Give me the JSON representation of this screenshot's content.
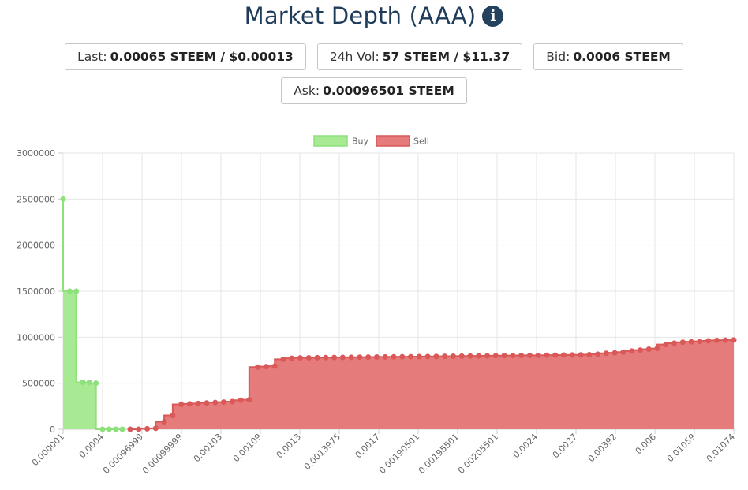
{
  "header": {
    "title": "Market Depth (AAA)",
    "info_icon": "info-circle-icon"
  },
  "stats": {
    "last_label": "Last:",
    "last_value": "0.00065 STEEM / $0.00013",
    "vol_label": "24h Vol:",
    "vol_value": "57 STEEM / $11.37",
    "bid_label": "Bid:",
    "bid_value": "0.0006 STEEM",
    "ask_label": "Ask:",
    "ask_value": "0.00096501 STEEM"
  },
  "chart_data": {
    "type": "area",
    "title": "",
    "xlabel": "",
    "ylabel": "",
    "ylim": [
      0,
      3000000
    ],
    "y_ticks": [
      0,
      500000,
      1000000,
      1500000,
      2000000,
      2500000,
      3000000
    ],
    "y_tick_labels": [
      "0",
      "500000",
      "1000000",
      "1500000",
      "2000000",
      "2500000",
      "3000000"
    ],
    "x_tick_labels": [
      "0.000001",
      "0.0004",
      "0.00096999",
      "0.00099999",
      "0.00103",
      "0.00109",
      "0.0013",
      "0.0013975",
      "0.0017",
      "0.00190501",
      "0.00195501",
      "0.00205501",
      "0.0024",
      "0.0027",
      "0.00392",
      "0.006",
      "0.01059",
      "0.01074"
    ],
    "legend_position": "top-center",
    "colors": {
      "buy_fill": "#a8e994",
      "buy_line": "#8ee07a",
      "sell_fill": "#e67b7b",
      "sell_line": "#d95858",
      "grid": "#e6e6e6"
    },
    "series": [
      {
        "name": "Buy",
        "values": [
          2500000,
          1500000,
          1500000,
          510000,
          510000,
          500000,
          0,
          0,
          0,
          0
        ]
      },
      {
        "name": "Sell",
        "values": [
          0,
          0,
          5000,
          10000,
          80000,
          150000,
          270000,
          275000,
          280000,
          285000,
          290000,
          295000,
          300000,
          315000,
          320000,
          675000,
          680000,
          685000,
          760000,
          770000,
          775000,
          776000,
          777000,
          778000,
          779000,
          780000,
          781000,
          782000,
          783000,
          784000,
          785000,
          786000,
          787000,
          788000,
          789000,
          790000,
          791000,
          792000,
          793000,
          794000,
          795000,
          796000,
          797000,
          798000,
          799000,
          800000,
          801000,
          802000,
          803000,
          804000,
          805000,
          806000,
          807000,
          808000,
          810000,
          815000,
          825000,
          830000,
          838000,
          850000,
          860000,
          870000,
          878000,
          920000,
          935000,
          945000,
          950000,
          955000,
          960000,
          965000,
          968000,
          970000
        ]
      }
    ]
  }
}
